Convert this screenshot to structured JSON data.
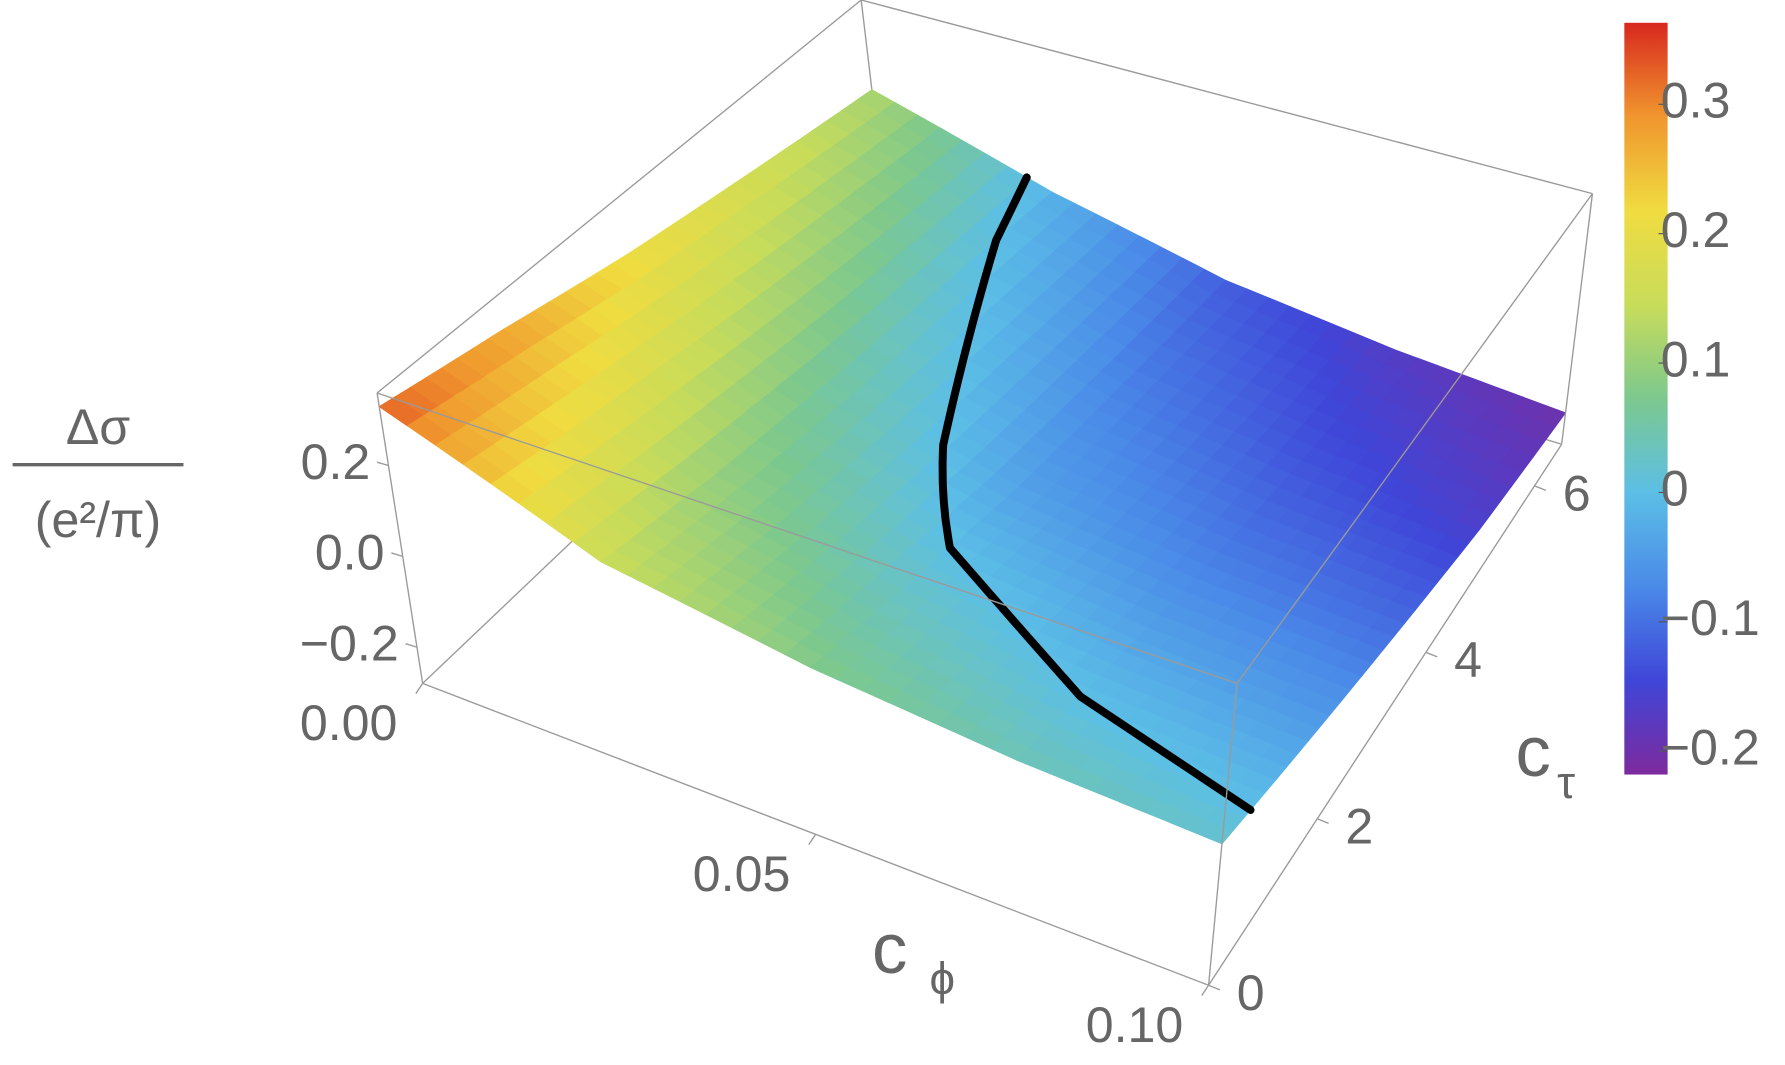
{
  "chart_data": {
    "type": "surface",
    "zlabel_numerator": "Δσ",
    "zlabel_denominator": "(e²/π)",
    "xlabel": {
      "base": "c",
      "sub": "ϕ"
    },
    "ylabel": {
      "base": "c",
      "sub": "τ"
    },
    "x": [
      0,
      0.025,
      0.05,
      0.075,
      0.1
    ],
    "y": [
      0,
      1.625,
      3.25,
      4.875,
      6.5
    ],
    "z": [
      [
        0.33,
        0.15,
        0.08,
        0.04,
        0.02
      ],
      [
        0.28,
        0.1,
        0.02,
        -0.02,
        -0.04
      ],
      [
        0.22,
        0.06,
        -0.04,
        -0.08,
        -0.1
      ],
      [
        0.17,
        0.02,
        -0.08,
        -0.13,
        -0.16
      ],
      [
        0.12,
        -0.02,
        -0.12,
        -0.17,
        -0.2
      ]
    ],
    "xlim": [
      0,
      0.1
    ],
    "ylim": [
      0,
      6.5
    ],
    "zlim": [
      -0.28,
      0.36
    ],
    "xticks": [
      {
        "value": 0,
        "label": "0.00"
      },
      0.05,
      {
        "value": 0.1,
        "label": "0.10"
      }
    ],
    "yticks": [
      0,
      2,
      4,
      6
    ],
    "zticks": [
      0.2,
      {
        "value": 0,
        "label": "0.0"
      },
      {
        "value": -0.2,
        "label": "−0.2"
      }
    ],
    "highlight_contour": 0,
    "colormap": [
      "#7d2a9e",
      "#3f46d8",
      "#4a8ae8",
      "#5cbfe6",
      "#7cc88e",
      "#c8dc5a",
      "#f0dc40",
      "#f0962e",
      "#d8281e"
    ],
    "clim": [
      -0.218,
      0.363
    ],
    "colorbar_ticks": [
      0.3,
      0.2,
      0.1,
      0,
      {
        "value": -0.1,
        "label": "−0.1"
      },
      {
        "value": -0.2,
        "label": "−0.2"
      }
    ]
  }
}
